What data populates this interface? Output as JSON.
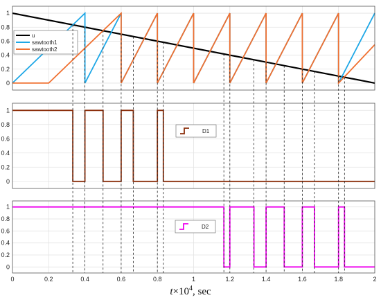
{
  "chart_data": [
    {
      "type": "line",
      "id": "top",
      "xlim": [
        0,
        2
      ],
      "ylim": [
        -0.1,
        1.1
      ],
      "yticks": [
        0,
        0.2,
        0.4,
        0.6,
        0.8,
        1
      ],
      "grid": true,
      "legend": {
        "placement": "top-left",
        "entries": [
          "u",
          "sawtooth1",
          "sawtooth2"
        ]
      },
      "series": [
        {
          "name": "u",
          "color": "#000000",
          "points": [
            [
              0,
              1
            ],
            [
              2,
              0
            ]
          ]
        },
        {
          "name": "sawtooth1",
          "color": "#1ea7e6",
          "points": [
            [
              0,
              0
            ],
            [
              0.4,
              1
            ],
            [
              0.4,
              0
            ],
            [
              0.6,
              1
            ],
            [
              0.6,
              0
            ],
            [
              0.8,
              1
            ],
            [
              0.8,
              0
            ],
            [
              1.0,
              1
            ],
            [
              1.0,
              0
            ],
            [
              1.2,
              1
            ],
            [
              1.2,
              0
            ],
            [
              1.4,
              1
            ],
            [
              1.4,
              0
            ],
            [
              1.6,
              1
            ],
            [
              1.6,
              0
            ],
            [
              1.8,
              1
            ],
            [
              1.8,
              0
            ],
            [
              2.0,
              1
            ]
          ]
        },
        {
          "name": "sawtooth2",
          "color": "#f07030",
          "points": [
            [
              0,
              0
            ],
            [
              0.2,
              0
            ],
            [
              0.6,
              1
            ],
            [
              0.6,
              0
            ],
            [
              0.8,
              1
            ],
            [
              0.8,
              0
            ],
            [
              1.0,
              1
            ],
            [
              1.0,
              0
            ],
            [
              1.2,
              1
            ],
            [
              1.2,
              0
            ],
            [
              1.4,
              1
            ],
            [
              1.4,
              0
            ],
            [
              1.6,
              1
            ],
            [
              1.6,
              0
            ],
            [
              1.8,
              1
            ],
            [
              1.8,
              0
            ],
            [
              2.0,
              0.55
            ]
          ]
        }
      ]
    },
    {
      "type": "line",
      "id": "mid",
      "xlim": [
        0,
        2
      ],
      "ylim": [
        -0.1,
        1.1
      ],
      "yticks": [
        0,
        0.2,
        0.4,
        0.6,
        0.8,
        1
      ],
      "grid": true,
      "legend": {
        "placement": "center-right",
        "entries": [
          "D1"
        ]
      },
      "series": [
        {
          "name": "D1",
          "color": "#8b2f0c",
          "points": [
            [
              0,
              1
            ],
            [
              0.333,
              1
            ],
            [
              0.333,
              0
            ],
            [
              0.4,
              0
            ],
            [
              0.4,
              1
            ],
            [
              0.5,
              1
            ],
            [
              0.5,
              0
            ],
            [
              0.6,
              0
            ],
            [
              0.6,
              1
            ],
            [
              0.667,
              1
            ],
            [
              0.667,
              0
            ],
            [
              0.8,
              0
            ],
            [
              0.8,
              1
            ],
            [
              0.833,
              1
            ],
            [
              0.833,
              0
            ],
            [
              2,
              0
            ]
          ]
        }
      ]
    },
    {
      "type": "line",
      "id": "bot",
      "xlim": [
        0,
        2
      ],
      "ylim": [
        -0.1,
        1.1
      ],
      "yticks": [
        0,
        0.2,
        0.4,
        0.6,
        0.8,
        1
      ],
      "xticks": [
        0,
        0.2,
        0.4,
        0.6,
        0.8,
        1,
        1.2,
        1.4,
        1.6,
        1.8,
        2
      ],
      "grid": true,
      "legend": {
        "placement": "center",
        "entries": [
          "D2"
        ]
      },
      "series": [
        {
          "name": "D2",
          "color": "#ee00ee",
          "points": [
            [
              0,
              1
            ],
            [
              1.167,
              1
            ],
            [
              1.167,
              0
            ],
            [
              1.2,
              0
            ],
            [
              1.2,
              1
            ],
            [
              1.333,
              1
            ],
            [
              1.333,
              0
            ],
            [
              1.4,
              0
            ],
            [
              1.4,
              1
            ],
            [
              1.5,
              1
            ],
            [
              1.5,
              0
            ],
            [
              1.6,
              0
            ],
            [
              1.6,
              1
            ],
            [
              1.667,
              1
            ],
            [
              1.667,
              0
            ],
            [
              1.8,
              0
            ],
            [
              1.8,
              1
            ],
            [
              1.833,
              1
            ],
            [
              1.833,
              0
            ],
            [
              2,
              0
            ]
          ]
        }
      ]
    }
  ],
  "crossings": [
    0.333,
    0.4,
    0.5,
    0.6,
    0.667,
    0.8,
    0.833,
    1.167,
    1.2,
    1.333,
    1.4,
    1.5,
    1.6,
    1.667,
    1.8,
    1.833
  ],
  "xlabel": {
    "var": "t",
    "times": "×10",
    "exp": "4",
    "unit": ", sec"
  }
}
